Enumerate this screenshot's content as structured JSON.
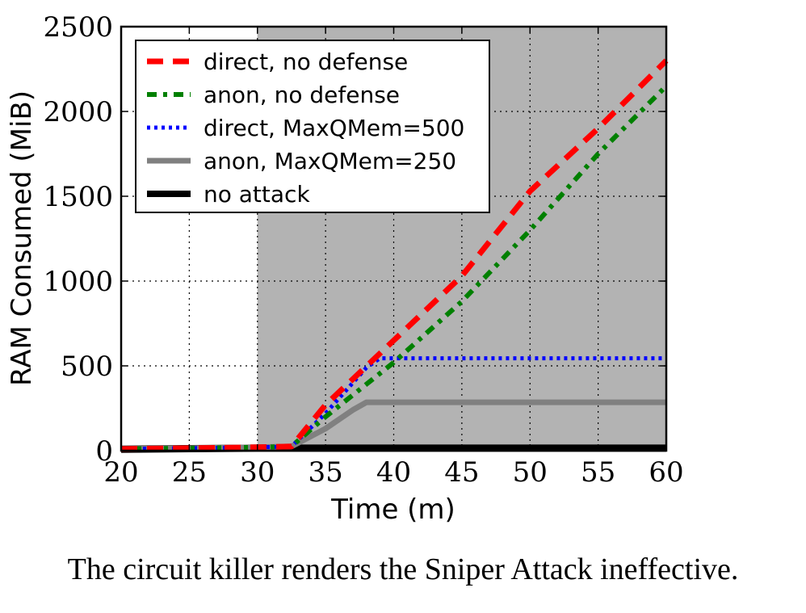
{
  "caption": "The circuit killer renders the Sniper Attack ineffective.",
  "chart_data": {
    "type": "line",
    "xlabel": "Time (m)",
    "ylabel": "RAM Consumed (MiB)",
    "xlim": [
      20,
      60
    ],
    "ylim": [
      0,
      2500
    ],
    "xticks": [
      20,
      25,
      30,
      35,
      40,
      45,
      50,
      55,
      60
    ],
    "yticks": [
      0,
      500,
      1000,
      1500,
      2000,
      2500
    ],
    "grid": true,
    "legend_position": "top-left",
    "attack_region": {
      "x_start": 30,
      "x_end": 60,
      "color": "#b3b3b3"
    },
    "series": [
      {
        "name": "direct, no defense",
        "color": "#ff0000",
        "style": "dashed",
        "points": [
          [
            20,
            10
          ],
          [
            25,
            15
          ],
          [
            30,
            20
          ],
          [
            32.5,
            25
          ],
          [
            35,
            270
          ],
          [
            40,
            650
          ],
          [
            45,
            1030
          ],
          [
            50,
            1530
          ],
          [
            55,
            1900
          ],
          [
            60,
            2300
          ]
        ]
      },
      {
        "name": "anon, no defense",
        "color": "#008000",
        "style": "dashdot",
        "points": [
          [
            20,
            10
          ],
          [
            25,
            15
          ],
          [
            30,
            20
          ],
          [
            32.5,
            25
          ],
          [
            35,
            200
          ],
          [
            40,
            520
          ],
          [
            45,
            880
          ],
          [
            50,
            1300
          ],
          [
            55,
            1750
          ],
          [
            60,
            2150
          ]
        ]
      },
      {
        "name": "direct, MaxQMem=500",
        "color": "#0000ff",
        "style": "dotted",
        "points": [
          [
            20,
            10
          ],
          [
            25,
            15
          ],
          [
            30,
            20
          ],
          [
            32.5,
            25
          ],
          [
            35,
            220
          ],
          [
            38,
            490
          ],
          [
            39,
            545
          ],
          [
            45,
            545
          ],
          [
            50,
            545
          ],
          [
            55,
            545
          ],
          [
            60,
            545
          ]
        ]
      },
      {
        "name": "anon, MaxQMem=250",
        "color": "#808080",
        "style": "solid",
        "points": [
          [
            20,
            10
          ],
          [
            25,
            15
          ],
          [
            30,
            20
          ],
          [
            32.5,
            25
          ],
          [
            35,
            130
          ],
          [
            37,
            240
          ],
          [
            38,
            285
          ],
          [
            45,
            285
          ],
          [
            50,
            285
          ],
          [
            55,
            285
          ],
          [
            60,
            285
          ]
        ]
      },
      {
        "name": "no attack",
        "color": "#000000",
        "style": "solid",
        "points": [
          [
            20,
            8
          ],
          [
            25,
            12
          ],
          [
            30,
            15
          ],
          [
            35,
            15
          ],
          [
            40,
            15
          ],
          [
            45,
            15
          ],
          [
            50,
            15
          ],
          [
            55,
            15
          ],
          [
            60,
            15
          ]
        ]
      }
    ]
  }
}
